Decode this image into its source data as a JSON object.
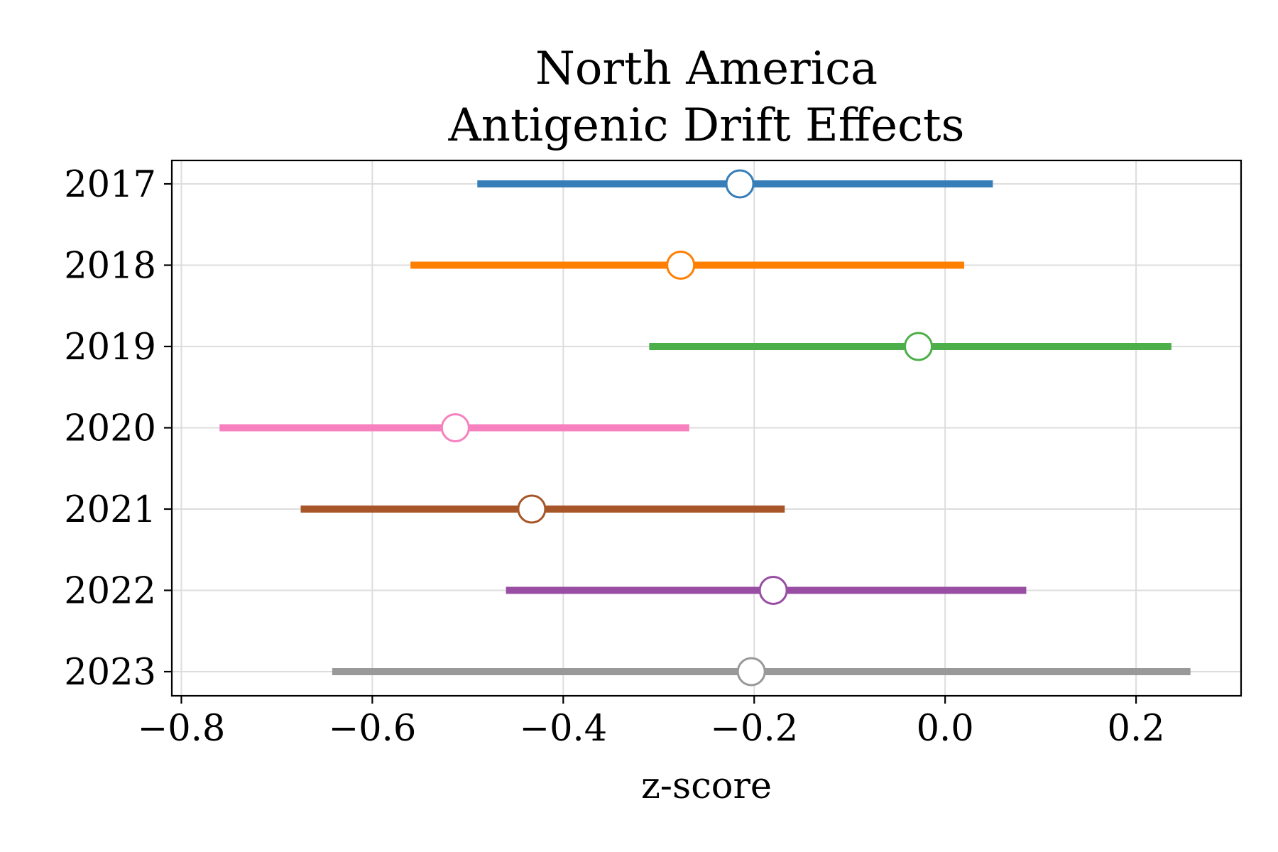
{
  "chart_data": {
    "type": "forest",
    "title_lines": [
      "North America",
      "Antigenic Drift Effects"
    ],
    "xlabel": "z-score",
    "ylabel": "",
    "xlim": [
      -0.81,
      0.31
    ],
    "x_ticks": [
      -0.8,
      -0.6,
      -0.4,
      -0.2,
      0.0,
      0.2
    ],
    "x_tick_labels": [
      "−0.8",
      "−0.6",
      "−0.4",
      "−0.2",
      "0.0",
      "0.2"
    ],
    "grid": true,
    "categories": [
      "2017",
      "2018",
      "2019",
      "2020",
      "2021",
      "2022",
      "2023"
    ],
    "series": [
      {
        "category": "2017",
        "estimate": -0.215,
        "lower": -0.49,
        "upper": 0.05,
        "color": "#377eb8"
      },
      {
        "category": "2018",
        "estimate": -0.277,
        "lower": -0.56,
        "upper": 0.02,
        "color": "#ff7f00"
      },
      {
        "category": "2019",
        "estimate": -0.028,
        "lower": -0.31,
        "upper": 0.237,
        "color": "#4daf4a"
      },
      {
        "category": "2020",
        "estimate": -0.513,
        "lower": -0.76,
        "upper": -0.268,
        "color": "#f781bf"
      },
      {
        "category": "2021",
        "estimate": -0.433,
        "lower": -0.675,
        "upper": -0.168,
        "color": "#a65628"
      },
      {
        "category": "2022",
        "estimate": -0.18,
        "lower": -0.46,
        "upper": 0.085,
        "color": "#984ea3"
      },
      {
        "category": "2023",
        "estimate": -0.203,
        "lower": -0.642,
        "upper": 0.257,
        "color": "#999999"
      }
    ]
  }
}
